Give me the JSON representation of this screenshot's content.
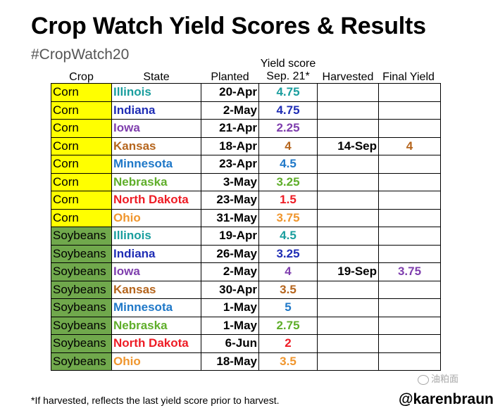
{
  "title": "Crop Watch Yield Scores & Results",
  "hashtag": "#CropWatch20",
  "headers": {
    "crop": "Crop",
    "state": "State",
    "planted": "Planted",
    "score_line1": "Yield score",
    "score_line2": "Sep. 21*",
    "harvested": "Harvested",
    "final": "Final Yield"
  },
  "rows": [
    {
      "crop": "Corn",
      "state": "Illinois",
      "planted": "20-Apr",
      "score": "4.75",
      "harvested": "",
      "final": "",
      "crop_bg": "#ffff00",
      "color": "#1a9e9e"
    },
    {
      "crop": "Corn",
      "state": "Indiana",
      "planted": "2-May",
      "score": "4.75",
      "harvested": "",
      "final": "",
      "crop_bg": "#ffff00",
      "color": "#1f2db5"
    },
    {
      "crop": "Corn",
      "state": "Iowa",
      "planted": "21-Apr",
      "score": "2.25",
      "harvested": "",
      "final": "",
      "crop_bg": "#ffff00",
      "color": "#7f3fae"
    },
    {
      "crop": "Corn",
      "state": "Kansas",
      "planted": "18-Apr",
      "score": "4",
      "harvested": "14-Sep",
      "final": "4",
      "crop_bg": "#ffff00",
      "color": "#b5651d"
    },
    {
      "crop": "Corn",
      "state": "Minnesota",
      "planted": "23-Apr",
      "score": "4.5",
      "harvested": "",
      "final": "",
      "crop_bg": "#ffff00",
      "color": "#1f78c8"
    },
    {
      "crop": "Corn",
      "state": "Nebraska",
      "planted": "3-May",
      "score": "3.25",
      "harvested": "",
      "final": "",
      "crop_bg": "#ffff00",
      "color": "#5fae2a"
    },
    {
      "crop": "Corn",
      "state": "North Dakota",
      "planted": "23-May",
      "score": "1.5",
      "harvested": "",
      "final": "",
      "crop_bg": "#ffff00",
      "color": "#ee1c25"
    },
    {
      "crop": "Corn",
      "state": "Ohio",
      "planted": "31-May",
      "score": "3.75",
      "harvested": "",
      "final": "",
      "crop_bg": "#ffff00",
      "color": "#f0962e"
    },
    {
      "crop": "Soybeans",
      "state": "Illinois",
      "planted": "19-Apr",
      "score": "4.5",
      "harvested": "",
      "final": "",
      "crop_bg": "#70a84c",
      "color": "#1a9e9e"
    },
    {
      "crop": "Soybeans",
      "state": "Indiana",
      "planted": "26-May",
      "score": "3.25",
      "harvested": "",
      "final": "",
      "crop_bg": "#70a84c",
      "color": "#1f2db5"
    },
    {
      "crop": "Soybeans",
      "state": "Iowa",
      "planted": "2-May",
      "score": "4",
      "harvested": "19-Sep",
      "final": "3.75",
      "crop_bg": "#70a84c",
      "color": "#7f3fae"
    },
    {
      "crop": "Soybeans",
      "state": "Kansas",
      "planted": "30-Apr",
      "score": "3.5",
      "harvested": "",
      "final": "",
      "crop_bg": "#70a84c",
      "color": "#b5651d"
    },
    {
      "crop": "Soybeans",
      "state": "Minnesota",
      "planted": "1-May",
      "score": "5",
      "harvested": "",
      "final": "",
      "crop_bg": "#70a84c",
      "color": "#1f78c8"
    },
    {
      "crop": "Soybeans",
      "state": "Nebraska",
      "planted": "1-May",
      "score": "2.75",
      "harvested": "",
      "final": "",
      "crop_bg": "#70a84c",
      "color": "#5fae2a"
    },
    {
      "crop": "Soybeans",
      "state": "North Dakota",
      "planted": "6-Jun",
      "score": "2",
      "harvested": "",
      "final": "",
      "crop_bg": "#70a84c",
      "color": "#ee1c25"
    },
    {
      "crop": "Soybeans",
      "state": "Ohio",
      "planted": "18-May",
      "score": "3.5",
      "harvested": "",
      "final": "",
      "crop_bg": "#70a84c",
      "color": "#f0962e"
    }
  ],
  "footnote": "*If harvested, reflects the last yield score prior to harvest.",
  "handle": "@karenbraun",
  "watermark": "油粕面"
}
